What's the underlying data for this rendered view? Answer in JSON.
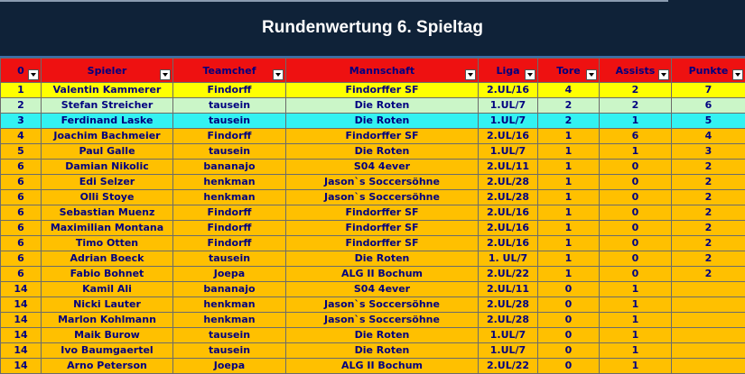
{
  "title": "Rundenwertung 6. Spieltag",
  "headers": [
    "0",
    "Spieler",
    "Teamchef",
    "Mannschaft",
    "Liga",
    "Tore",
    "Assists",
    "Punkte"
  ],
  "colors": {
    "banner": "#0f2238",
    "header": "#ee1111",
    "first": "#ffff00",
    "second": "#cbf6c8",
    "third": "#33f2f2",
    "default": "#ffc000",
    "text": "#000080"
  },
  "rows": [
    {
      "rank": "1",
      "spieler": "Valentin Kammerer",
      "teamchef": "Findorff",
      "mannschaft": "Findorffer SF",
      "liga": "2.UL/16",
      "tore": "4",
      "assists": "2",
      "punkte": "7",
      "style": "yellow"
    },
    {
      "rank": "2",
      "spieler": "Stefan Streicher",
      "teamchef": "tausein",
      "mannschaft": "Die Roten",
      "liga": "1.UL/7",
      "tore": "2",
      "assists": "2",
      "punkte": "6",
      "style": "green"
    },
    {
      "rank": "3",
      "spieler": "Ferdinand Laske",
      "teamchef": "tausein",
      "mannschaft": "Die Roten",
      "liga": "1.UL/7",
      "tore": "2",
      "assists": "1",
      "punkte": "5",
      "style": "cyan"
    },
    {
      "rank": "4",
      "spieler": "Joachim Bachmeier",
      "teamchef": "Findorff",
      "mannschaft": "Findorffer SF",
      "liga": "2.UL/16",
      "tore": "1",
      "assists": "6",
      "punkte": "4",
      "style": "orange"
    },
    {
      "rank": "5",
      "spieler": "Paul Galle",
      "teamchef": "tausein",
      "mannschaft": "Die Roten",
      "liga": "1.UL/7",
      "tore": "1",
      "assists": "1",
      "punkte": "3",
      "style": "orange"
    },
    {
      "rank": "6",
      "spieler": "Damian Nikolic",
      "teamchef": "bananajo",
      "mannschaft": "S04 4ever",
      "liga": "2.UL/11",
      "tore": "1",
      "assists": "0",
      "punkte": "2",
      "style": "orange"
    },
    {
      "rank": "6",
      "spieler": "Edi Selzer",
      "teamchef": "henkman",
      "mannschaft": "Jason`s Soccersöhne",
      "liga": "2.UL/28",
      "tore": "1",
      "assists": "0",
      "punkte": "2",
      "style": "orange"
    },
    {
      "rank": "6",
      "spieler": "Olli Stoye",
      "teamchef": "henkman",
      "mannschaft": "Jason`s Soccersöhne",
      "liga": "2.UL/28",
      "tore": "1",
      "assists": "0",
      "punkte": "2",
      "style": "orange"
    },
    {
      "rank": "6",
      "spieler": "Sebastian Muenz",
      "teamchef": "Findorff",
      "mannschaft": "Findorffer SF",
      "liga": "2.UL/16",
      "tore": "1",
      "assists": "0",
      "punkte": "2",
      "style": "orange"
    },
    {
      "rank": "6",
      "spieler": "Maximilian Montana",
      "teamchef": "Findorff",
      "mannschaft": "Findorffer SF",
      "liga": "2.UL/16",
      "tore": "1",
      "assists": "0",
      "punkte": "2",
      "style": "orange"
    },
    {
      "rank": "6",
      "spieler": "Timo Otten",
      "teamchef": "Findorff",
      "mannschaft": "Findorffer SF",
      "liga": "2.UL/16",
      "tore": "1",
      "assists": "0",
      "punkte": "2",
      "style": "orange"
    },
    {
      "rank": "6",
      "spieler": "Adrian Boeck",
      "teamchef": "tausein",
      "mannschaft": "Die Roten",
      "liga": "1. UL/7",
      "tore": "1",
      "assists": "0",
      "punkte": "2",
      "style": "orange"
    },
    {
      "rank": "6",
      "spieler": "Fabio Bohnet",
      "teamchef": "Joepa",
      "mannschaft": "ALG II Bochum",
      "liga": "2.UL/22",
      "tore": "1",
      "assists": "0",
      "punkte": "2",
      "style": "orange"
    },
    {
      "rank": "14",
      "spieler": "Kamil Ali",
      "teamchef": "bananajo",
      "mannschaft": "S04 4ever",
      "liga": "2.UL/11",
      "tore": "0",
      "assists": "1",
      "punkte": "",
      "style": "orange"
    },
    {
      "rank": "14",
      "spieler": "Nicki Lauter",
      "teamchef": "henkman",
      "mannschaft": "Jason`s Soccersöhne",
      "liga": "2.UL/28",
      "tore": "0",
      "assists": "1",
      "punkte": "",
      "style": "orange"
    },
    {
      "rank": "14",
      "spieler": "Marlon Kohlmann",
      "teamchef": "henkman",
      "mannschaft": "Jason`s Soccersöhne",
      "liga": "2.UL/28",
      "tore": "0",
      "assists": "1",
      "punkte": "",
      "style": "orange"
    },
    {
      "rank": "14",
      "spieler": "Maik Burow",
      "teamchef": "tausein",
      "mannschaft": "Die Roten",
      "liga": "1.UL/7",
      "tore": "0",
      "assists": "1",
      "punkte": "",
      "style": "orange"
    },
    {
      "rank": "14",
      "spieler": "Ivo Baumgaertel",
      "teamchef": "tausein",
      "mannschaft": "Die Roten",
      "liga": "1.UL/7",
      "tore": "0",
      "assists": "1",
      "punkte": "",
      "style": "orange"
    },
    {
      "rank": "14",
      "spieler": "Arno Peterson",
      "teamchef": "Joepa",
      "mannschaft": "ALG II Bochum",
      "liga": "2.UL/22",
      "tore": "0",
      "assists": "1",
      "punkte": "",
      "style": "orange"
    }
  ]
}
